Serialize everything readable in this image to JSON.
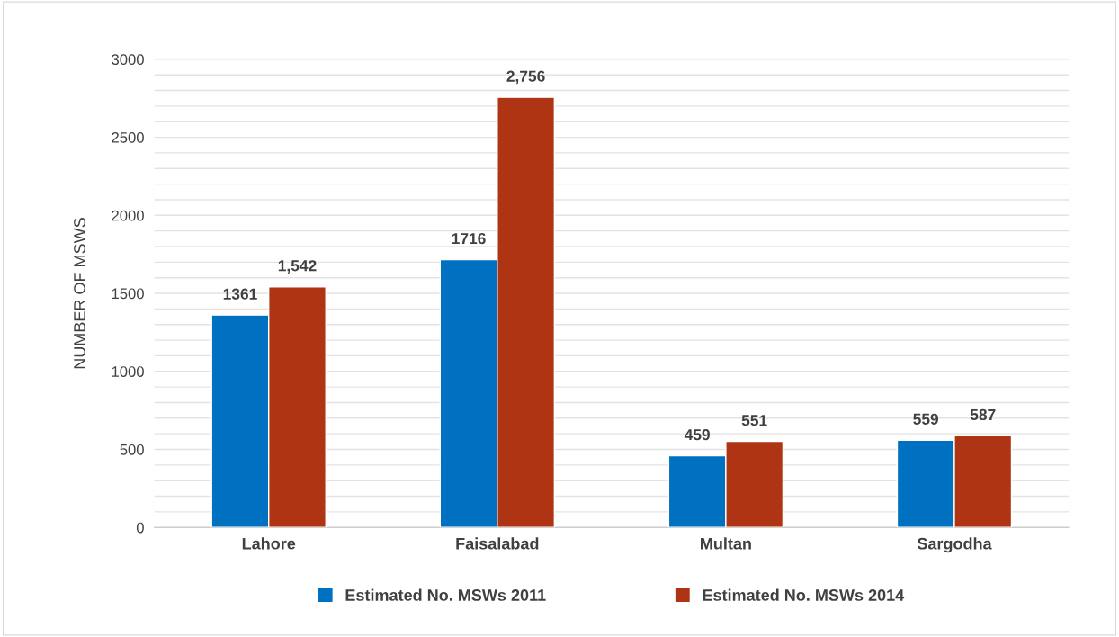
{
  "chart_data": {
    "type": "bar",
    "ylabel": "NUMBER OF MSWS",
    "categories": [
      "Lahore",
      "Faisalabad",
      "Multan",
      "Sargodha"
    ],
    "series": [
      {
        "name": "Estimated No. MSWs 2011",
        "color": "#0070c0",
        "values": [
          1361,
          1716,
          459,
          559
        ],
        "value_labels": [
          "1361",
          "1716",
          "459",
          "559"
        ]
      },
      {
        "name": "Estimated No. MSWs 2014",
        "color": "#ae3414",
        "values": [
          1542,
          2756,
          551,
          587
        ],
        "value_labels": [
          "1,542",
          "2,756",
          "551",
          "587"
        ]
      }
    ],
    "ylim": [
      0,
      3000
    ],
    "yticks": [
      0,
      {
        "value": 100,
        "label": null
      },
      {
        "value": 200,
        "label": null
      },
      {
        "value": 300,
        "label": null
      },
      {
        "value": 400,
        "label": null
      },
      500,
      {
        "value": 600,
        "label": null
      },
      {
        "value": 700,
        "label": null
      },
      {
        "value": 800,
        "label": null
      },
      {
        "value": 900,
        "label": null
      },
      1000,
      {
        "value": 1100,
        "label": null
      },
      {
        "value": 1200,
        "label": null
      },
      {
        "value": 1300,
        "label": null
      },
      {
        "value": 1400,
        "label": null
      },
      1500,
      {
        "value": 1600,
        "label": null
      },
      {
        "value": 1700,
        "label": null
      },
      {
        "value": 1800,
        "label": null
      },
      {
        "value": 1900,
        "label": null
      },
      2000,
      {
        "value": 2100,
        "label": null
      },
      {
        "value": 2200,
        "label": null
      },
      {
        "value": 2300,
        "label": null
      },
      {
        "value": 2400,
        "label": null
      },
      2500,
      {
        "value": 2600,
        "label": null
      },
      {
        "value": 2700,
        "label": null
      },
      {
        "value": 2800,
        "label": null
      },
      {
        "value": 2900,
        "label": null
      },
      3000
    ],
    "grid": "y",
    "legend": "bottom"
  }
}
